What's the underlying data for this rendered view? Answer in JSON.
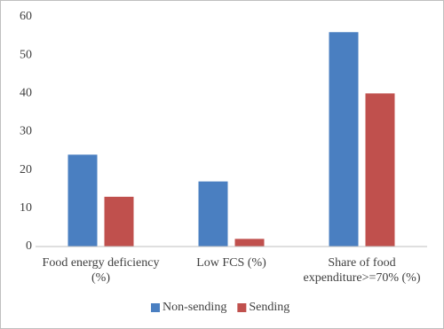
{
  "chart_data": {
    "type": "bar",
    "categories": [
      "Food energy deficiency (%)",
      "Low FCS (%)",
      "Share of food expenditure>=70% (%)"
    ],
    "series": [
      {
        "name": "Non-sending",
        "color": "#4a7fc1",
        "values": [
          24,
          17,
          56
        ]
      },
      {
        "name": "Sending",
        "color": "#c0504d",
        "values": [
          13,
          2,
          40
        ]
      }
    ],
    "ylim": [
      0,
      60
    ],
    "yticks": [
      0,
      10,
      20,
      30,
      40,
      50,
      60
    ],
    "grid": false,
    "legend": "bottom"
  }
}
